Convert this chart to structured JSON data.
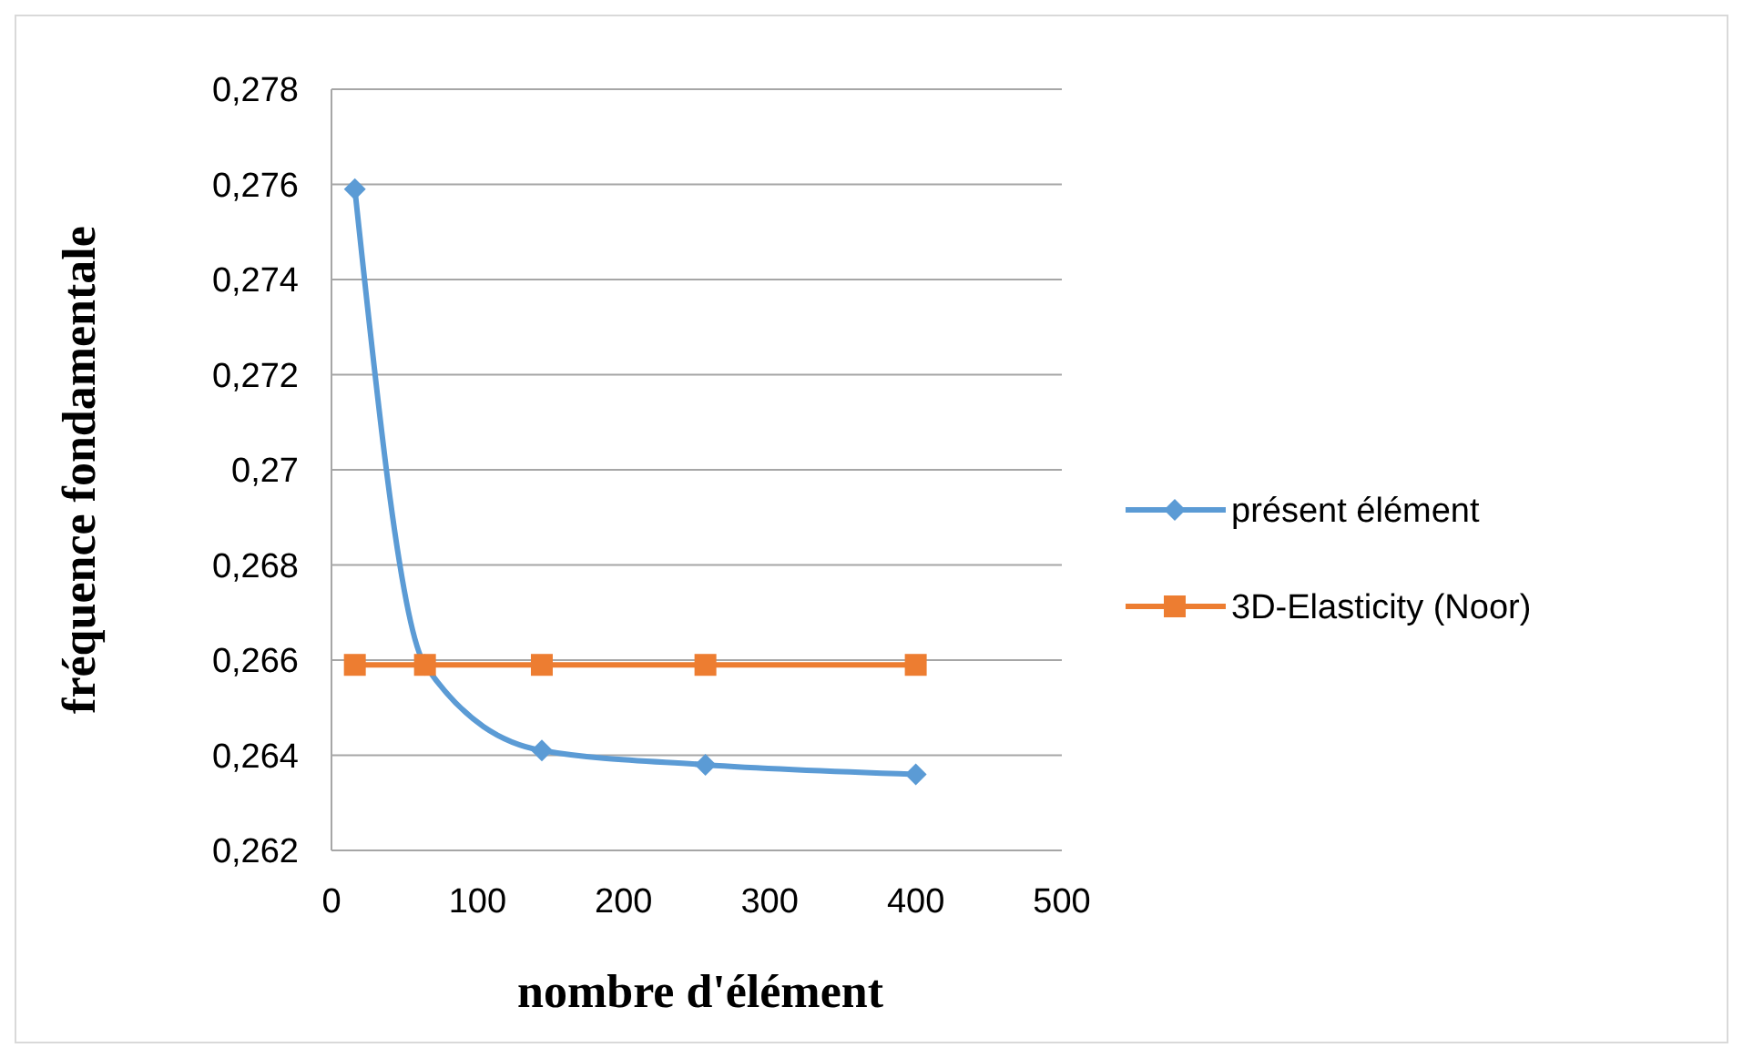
{
  "chart_data": {
    "type": "line",
    "xlabel": "nombre d'élément",
    "ylabel": "fréquence fondamentale",
    "xlim": [
      0,
      500
    ],
    "xticks": [
      0,
      100,
      200,
      300,
      400,
      500
    ],
    "ylim": [
      0.262,
      0.278
    ],
    "yticks": [
      {
        "value": 0.262,
        "label": "0,262"
      },
      {
        "value": 0.264,
        "label": "0,264"
      },
      {
        "value": 0.266,
        "label": "0,266"
      },
      {
        "value": 0.268,
        "label": "0,268"
      },
      {
        "value": 0.27,
        "label": "0,27"
      },
      {
        "value": 0.272,
        "label": "0,272"
      },
      {
        "value": 0.274,
        "label": "0,274"
      },
      {
        "value": 0.276,
        "label": "0,276"
      },
      {
        "value": 0.278,
        "label": "0,278"
      }
    ],
    "grid": "y",
    "legend": "right",
    "line_style": "solid",
    "series": [
      {
        "name": "présent élément",
        "color": "#5b9bd5",
        "marker": "diamond",
        "x": [
          16,
          64,
          144,
          256,
          400
        ],
        "values": [
          0.2759,
          0.2659,
          0.2641,
          0.2638,
          0.2636
        ]
      },
      {
        "name": "3D-Elasticity (Noor)",
        "color": "#ed7d31",
        "marker": "square",
        "x": [
          16,
          64,
          144,
          256,
          400
        ],
        "values": [
          0.2659,
          0.2659,
          0.2659,
          0.2659,
          0.2659
        ]
      }
    ]
  }
}
